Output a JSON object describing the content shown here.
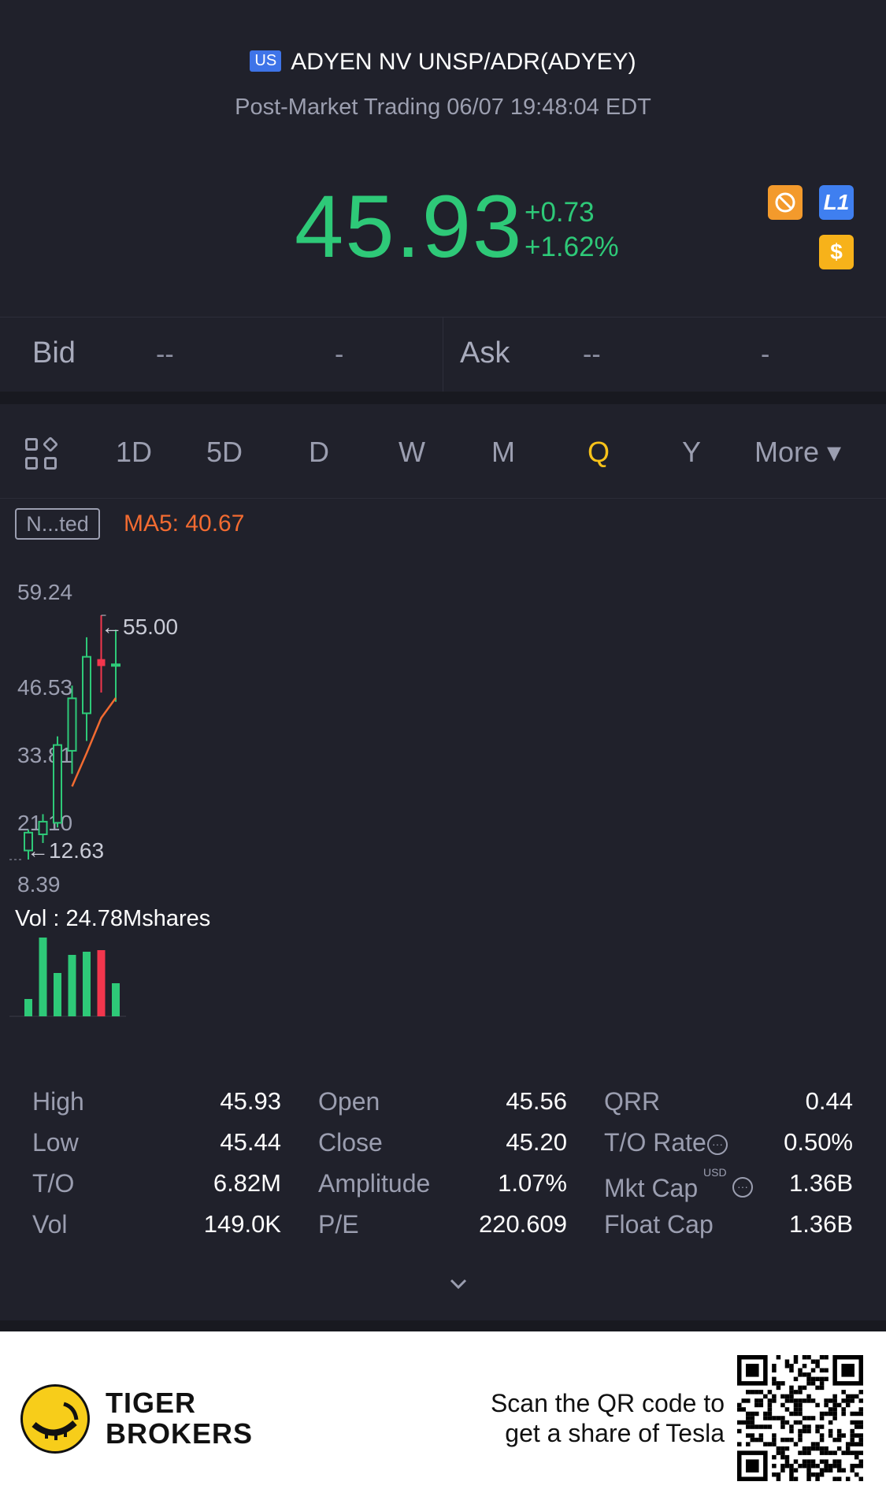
{
  "header": {
    "market_badge": "US",
    "title": "ADYEN NV UNSP/ADR(ADYEY)",
    "subtitle": "Post-Market Trading 06/07 19:48:04 EDT",
    "price": "45.93",
    "change_abs": "+0.73",
    "change_pct": "+1.62%",
    "icons": [
      "no-fee-icon",
      "level1-icon",
      "dollar-icon"
    ],
    "level_label": "L1",
    "dollar_label": "$"
  },
  "bidask": {
    "bid_label": "Bid",
    "bid_price": "--",
    "bid_size": "-",
    "ask_label": "Ask",
    "ask_price": "--",
    "ask_size": "-"
  },
  "tabs": {
    "items": [
      "1D",
      "5D",
      "D",
      "W",
      "M",
      "Q",
      "Y",
      "More ▾"
    ],
    "active": "Q"
  },
  "chart": {
    "adjust_label": "N...ted",
    "ma5_label": "MA5: 40.67",
    "y_ticks": [
      "59.24",
      "46.53",
      "33.81",
      "21.10",
      "8.39"
    ],
    "high_marker": "←55.00",
    "low_marker": "←12.63",
    "volume_label": "Vol  : 24.78Mshares"
  },
  "chart_data": {
    "type": "candlestick",
    "ylim": [
      8.39,
      59.24
    ],
    "y_ticks": [
      59.24,
      46.53,
      33.81,
      21.1,
      8.39
    ],
    "candles": [
      {
        "open": 14.2,
        "close": 17.3,
        "high": 17.8,
        "low": 12.63,
        "dir": "up"
      },
      {
        "open": 17.0,
        "close": 19.2,
        "high": 20.5,
        "low": 15.5,
        "dir": "up"
      },
      {
        "open": 19.0,
        "close": 32.5,
        "high": 34.0,
        "low": 18.2,
        "dir": "up"
      },
      {
        "open": 31.5,
        "close": 40.6,
        "high": 42.8,
        "low": 27.5,
        "dir": "up"
      },
      {
        "open": 38.0,
        "close": 47.8,
        "high": 51.2,
        "low": 33.2,
        "dir": "up"
      },
      {
        "open": 47.4,
        "close": 46.2,
        "high": 55.0,
        "low": 41.6,
        "dir": "down"
      },
      {
        "open": 46.3,
        "close": 46.5,
        "high": 52.5,
        "low": 40.0,
        "dir": "up"
      }
    ],
    "ma5": [
      null,
      null,
      null,
      25.3,
      31.1,
      37.2,
      40.67
    ],
    "volume_series": [
      {
        "value": 0.22,
        "dir": "up"
      },
      {
        "value": 1.0,
        "dir": "up"
      },
      {
        "value": 0.55,
        "dir": "up"
      },
      {
        "value": 0.78,
        "dir": "up"
      },
      {
        "value": 0.82,
        "dir": "up"
      },
      {
        "value": 0.84,
        "dir": "down"
      },
      {
        "value": 0.42,
        "dir": "up"
      }
    ],
    "up_color": "#2ec978",
    "down_color": "#f2364d",
    "ma5_color": "#f26b31"
  },
  "stats": {
    "rows": [
      [
        {
          "label": "High",
          "value": "45.93"
        },
        {
          "label": "Open",
          "value": "45.56"
        },
        {
          "label": "QRR",
          "value": "0.44"
        }
      ],
      [
        {
          "label": "Low",
          "value": "45.44"
        },
        {
          "label": "Close",
          "value": "45.20"
        },
        {
          "label": "T/O Rate",
          "value": "0.50%"
        }
      ],
      [
        {
          "label": "T/O",
          "value": "6.82M"
        },
        {
          "label": "Amplitude",
          "value": "1.07%"
        },
        {
          "label": "Mkt Cap",
          "value": "1.36B"
        }
      ],
      [
        {
          "label": "Vol",
          "value": "149.0K"
        },
        {
          "label": "P/E",
          "value": "220.609"
        },
        {
          "label": "Float Cap",
          "value": "1.36B"
        }
      ]
    ],
    "mktcap_currency": "USD"
  },
  "footer": {
    "brand_line1": "TIGER",
    "brand_line2": "BROKERS",
    "scan_line1": "Scan the QR code to",
    "scan_line2": "get a share of Tesla"
  },
  "colors": {
    "background": "#20212b",
    "up": "#2ec978",
    "down": "#f2364d",
    "accent": "#f7c21a",
    "ma5": "#f26b31"
  }
}
